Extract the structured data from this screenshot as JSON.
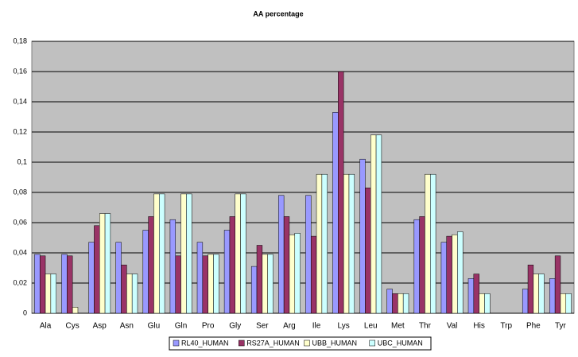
{
  "chart_data": {
    "type": "bar",
    "title": "AA percentage",
    "categories": [
      "Ala",
      "Cys",
      "Asp",
      "Asn",
      "Glu",
      "Gln",
      "Pro",
      "Gly",
      "Ser",
      "Arg",
      "Ile",
      "Lys",
      "Leu",
      "Met",
      "Thr",
      "Val",
      "His",
      "Trp",
      "Phe",
      "Tyr"
    ],
    "series": [
      {
        "name": "RL40_HUMAN",
        "color": "#9999ff",
        "values": [
          0.039,
          0.039,
          0.047,
          0.047,
          0.055,
          0.062,
          0.047,
          0.055,
          0.031,
          0.078,
          0.078,
          0.133,
          0.102,
          0.016,
          0.062,
          0.047,
          0.023,
          0,
          0.016,
          0.023
        ]
      },
      {
        "name": "RS27A_HUMAN",
        "color": "#993366",
        "values": [
          0.038,
          0.038,
          0.058,
          0.032,
          0.064,
          0.038,
          0.038,
          0.064,
          0.045,
          0.064,
          0.051,
          0.16,
          0.083,
          0.013,
          0.064,
          0.051,
          0.026,
          0,
          0.032,
          0.038
        ]
      },
      {
        "name": "UBB_HUMAN",
        "color": "#ffffcc",
        "values": [
          0.026,
          0.004,
          0.066,
          0.026,
          0.079,
          0.079,
          0.039,
          0.079,
          0.039,
          0.052,
          0.092,
          0.092,
          0.118,
          0.013,
          0.092,
          0.052,
          0.013,
          0,
          0.026,
          0.013
        ]
      },
      {
        "name": "UBC_HUMAN",
        "color": "#ccffff",
        "values": [
          0.026,
          0,
          0.066,
          0.026,
          0.079,
          0.079,
          0.039,
          0.079,
          0.039,
          0.053,
          0.092,
          0.092,
          0.118,
          0.013,
          0.092,
          0.054,
          0.013,
          0,
          0.026,
          0.013
        ]
      }
    ],
    "ylim": [
      0,
      0.18
    ],
    "yticks": [
      0,
      {
        "value": 0.02,
        "label": "0,02"
      },
      {
        "value": 0.04,
        "label": "0,04"
      },
      {
        "value": 0.06,
        "label": "0,06"
      },
      {
        "value": 0.08,
        "label": "0,08"
      },
      {
        "value": 0.1,
        "label": "0,1"
      },
      {
        "value": 0.12,
        "label": "0,12"
      },
      {
        "value": 0.14,
        "label": "0,14"
      },
      {
        "value": 0.16,
        "label": "0,16"
      },
      {
        "value": 0.18,
        "label": "0,18"
      }
    ],
    "grid": true,
    "legend": "bottom"
  }
}
